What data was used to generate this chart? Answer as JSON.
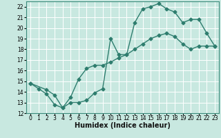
{
  "line1_x": [
    0,
    1,
    2,
    3,
    4,
    5,
    6,
    7,
    8,
    9,
    10,
    11,
    12,
    13,
    14,
    15,
    16,
    17,
    18,
    19,
    20,
    21,
    22,
    23
  ],
  "line1_y": [
    14.8,
    14.3,
    13.8,
    12.8,
    12.5,
    13.0,
    13.0,
    13.2,
    13.9,
    14.3,
    19.0,
    17.5,
    17.5,
    20.5,
    21.8,
    22.0,
    22.3,
    21.8,
    21.5,
    20.5,
    20.8,
    20.8,
    19.5,
    18.3
  ],
  "line2_x": [
    0,
    2,
    3,
    4,
    5,
    6,
    7,
    8,
    9,
    10,
    11,
    12,
    13,
    14,
    15,
    16,
    17,
    18,
    19,
    20,
    21,
    22,
    23
  ],
  "line2_y": [
    14.8,
    14.2,
    13.7,
    12.5,
    13.5,
    15.2,
    16.2,
    16.5,
    16.5,
    16.8,
    17.2,
    17.5,
    18.0,
    18.5,
    19.0,
    19.3,
    19.5,
    19.2,
    18.5,
    18.0,
    18.3,
    18.3,
    18.3
  ],
  "line_color": "#2e7d6e",
  "bg_color": "#c8e8e0",
  "grid_color": "#ffffff",
  "xlabel": "Humidex (Indice chaleur)",
  "ylim": [
    12,
    22.5
  ],
  "xlim": [
    -0.5,
    23.5
  ],
  "yticks": [
    12,
    13,
    14,
    15,
    16,
    17,
    18,
    19,
    20,
    21,
    22
  ],
  "xticks": [
    0,
    1,
    2,
    3,
    4,
    5,
    6,
    7,
    8,
    9,
    10,
    11,
    12,
    13,
    14,
    15,
    16,
    17,
    18,
    19,
    20,
    21,
    22,
    23
  ],
  "marker": "D",
  "markersize": 2.5,
  "linewidth": 1.0,
  "xlabel_fontsize": 7,
  "tick_fontsize": 5.5
}
